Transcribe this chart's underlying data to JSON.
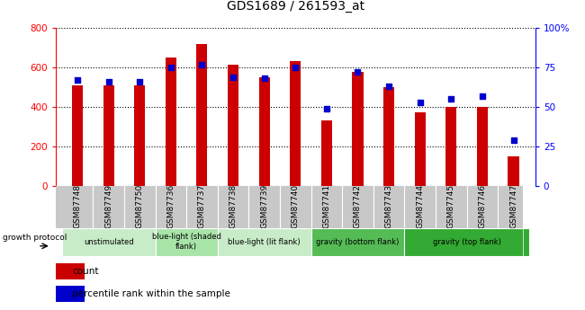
{
  "title": "GDS1689 / 261593_at",
  "samples": [
    "GSM87748",
    "GSM87749",
    "GSM87750",
    "GSM87736",
    "GSM87737",
    "GSM87738",
    "GSM87739",
    "GSM87740",
    "GSM87741",
    "GSM87742",
    "GSM87743",
    "GSM87744",
    "GSM87745",
    "GSM87746",
    "GSM87747"
  ],
  "counts": [
    510,
    510,
    510,
    650,
    720,
    615,
    548,
    630,
    332,
    578,
    500,
    372,
    400,
    400,
    148
  ],
  "percentiles": [
    67,
    66,
    66,
    75,
    77,
    69,
    68,
    75,
    49,
    72,
    63,
    53,
    55,
    57,
    29
  ],
  "groups": [
    {
      "label": "unstimulated",
      "start": 0,
      "end": 3,
      "color": "#c8ecc8"
    },
    {
      "label": "blue-light (shaded\nflank)",
      "start": 3,
      "end": 5,
      "color": "#a8e4a8"
    },
    {
      "label": "blue-light (lit flank)",
      "start": 5,
      "end": 8,
      "color": "#c8ecc8"
    },
    {
      "label": "gravity (bottom flank)",
      "start": 8,
      "end": 11,
      "color": "#55bb55"
    },
    {
      "label": "gravity (top flank)",
      "start": 11,
      "end": 15,
      "color": "#33aa33"
    }
  ],
  "bar_color": "#cc0000",
  "dot_color": "#0000cc",
  "ylim_left": [
    0,
    800
  ],
  "ylim_right": [
    0,
    100
  ],
  "yticks_left": [
    0,
    200,
    400,
    600,
    800
  ],
  "yticks_right": [
    0,
    25,
    50,
    75,
    100
  ],
  "growth_protocol_label": "growth protocol",
  "legend_count": "count",
  "legend_pct": "percentile rank within the sample",
  "gray_cell": "#c8c8c8"
}
